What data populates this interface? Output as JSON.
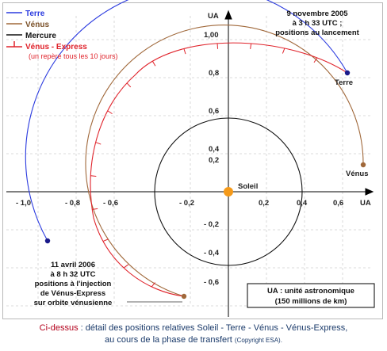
{
  "legend": {
    "terre": "Terre",
    "venus": "Vénus",
    "mercure": "Mercure",
    "venus_express": "Vénus - Express",
    "venus_express_note": "(un repère tous les 10 jours)"
  },
  "axes": {
    "y_unit": "UA",
    "x_unit": "UA",
    "x_ticks": [
      "- 1,0",
      "- 0,8",
      "- 0,6",
      "- 0,2",
      "0,2",
      "0,4",
      "0,6"
    ],
    "y_ticks": [
      "1,00",
      "0,8",
      "0,6",
      "0,4",
      "0,2",
      "- 0,2",
      "- 0,4",
      "- 0,6"
    ]
  },
  "bodies": {
    "soleil": "Soleil",
    "terre": "Terre",
    "venus": "Vénus"
  },
  "launch_note": [
    "9 novembre 2005",
    "à 3 h 33 UTC ;",
    "positions au lancement"
  ],
  "injection_note": [
    "11 avril 2006",
    "à 8 h 32 UTC",
    "positions à l'injection",
    "de Vénus-Express",
    "sur orbite vénusienne"
  ],
  "unit_box": [
    "UA : unité astronomique",
    "(150 millions de km)"
  ],
  "caption": {
    "lead": "Ci-dessus",
    "text": " : détail des positions relatives Soleil - Terre - Vénus - Vénus-Express,",
    "line2": "au cours de la phase de transfert",
    "copyright": "(Copyright ESA)."
  },
  "colors": {
    "terre": "#2a3adf",
    "venus": "#a0683a",
    "mercure": "#111111",
    "venus_express": "#e0232b",
    "soleil": "#f59a1a",
    "caption_lead": "#b3001b",
    "caption_text": "#1a3a6a"
  }
}
